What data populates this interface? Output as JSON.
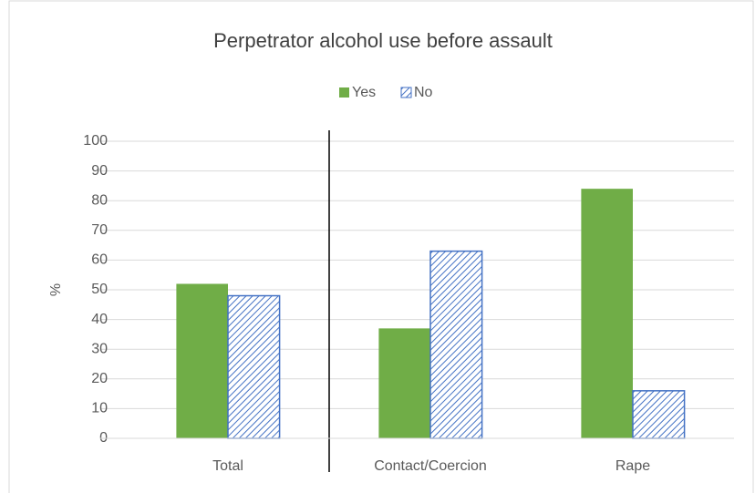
{
  "chart_data": {
    "type": "bar",
    "title": "Perpetrator alcohol use before assault",
    "y_label": "%",
    "categories": [
      "Total",
      "Contact/Coercion",
      "Rape"
    ],
    "series": [
      {
        "name": "Yes",
        "color": "#70ad47",
        "values": [
          52,
          37,
          84
        ]
      },
      {
        "name": "No",
        "color": "#4472c4",
        "pattern": "hatch",
        "values": [
          48,
          63,
          16
        ]
      }
    ],
    "ylim": [
      0,
      100
    ],
    "yticks": [
      0,
      10,
      20,
      30,
      40,
      50,
      60,
      70,
      80,
      90,
      100
    ],
    "grid": true,
    "legend": "top"
  }
}
